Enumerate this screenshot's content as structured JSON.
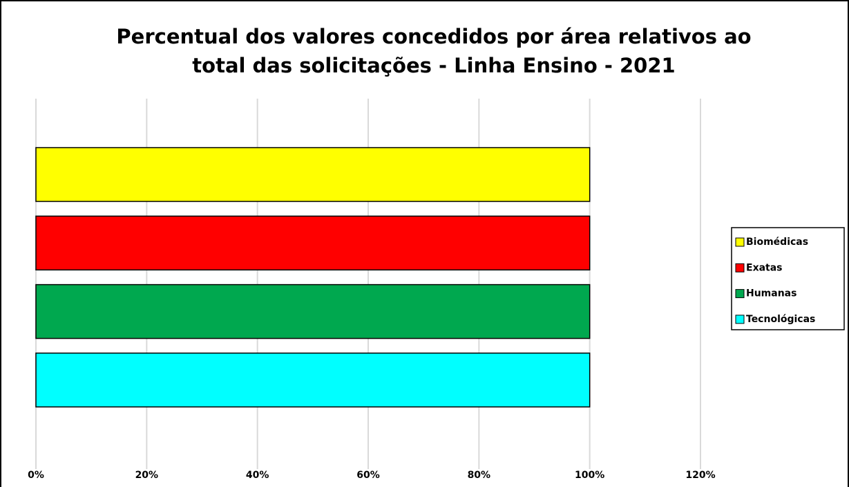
{
  "chart_data": {
    "type": "bar",
    "orientation": "horizontal",
    "title": [
      "Percentual dos valores concedidos por área relativos ao",
      "total das solicitações - Linha Ensino - 2021"
    ],
    "categories": [
      null
    ],
    "series": [
      {
        "name": "Biomédicas",
        "color": "#ffff00",
        "values": [
          100
        ]
      },
      {
        "name": "Exatas",
        "color": "#ff0000",
        "values": [
          100
        ]
      },
      {
        "name": "Humanas",
        "color": "#00a84f",
        "values": [
          100
        ]
      },
      {
        "name": "Tecnológicas",
        "color": "#00ffff",
        "values": [
          100
        ]
      }
    ],
    "xlim": [
      0,
      120
    ],
    "xticks": [
      {
        "value": 0,
        "label": "0%"
      },
      {
        "value": 20,
        "label": "20%"
      },
      {
        "value": 40,
        "label": "40%"
      },
      {
        "value": 60,
        "label": "60%"
      },
      {
        "value": 80,
        "label": "80%"
      },
      {
        "value": 100,
        "label": "100%"
      },
      {
        "value": 120,
        "label": "120%"
      }
    ],
    "grid": true,
    "legend": "right"
  }
}
